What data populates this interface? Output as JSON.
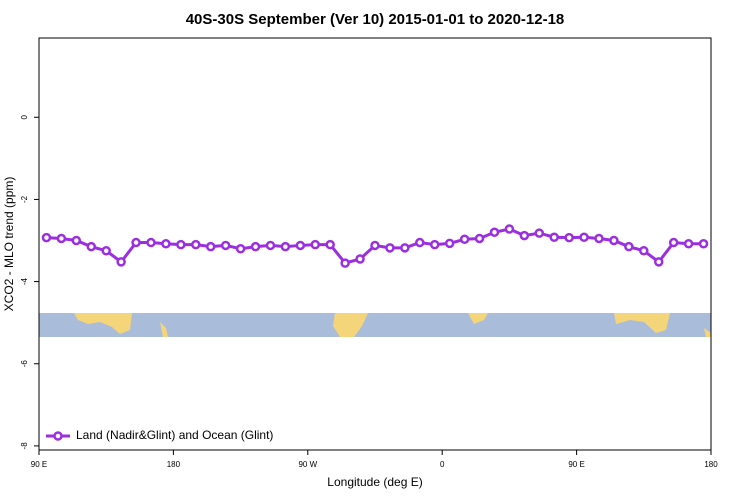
{
  "chart_data": {
    "type": "line",
    "title": "40S-30S September (Ver 10)   2015-01-01 to 2020-12-18",
    "xlabel": "Longitude (deg E)",
    "ylabel": "XCO2 - MLO trend (ppm)",
    "x": [
      95,
      105,
      115,
      125,
      135,
      145,
      155,
      165,
      175,
      185,
      195,
      205,
      215,
      225,
      235,
      245,
      255,
      265,
      275,
      285,
      295,
      305,
      315,
      325,
      335,
      345,
      355,
      365,
      375,
      385,
      395,
      405,
      415,
      425,
      435,
      445,
      455,
      465,
      475,
      485,
      495,
      505,
      515,
      525,
      535
    ],
    "series": [
      {
        "name": "Land (Nadir&Glint) and Ocean (Glint)",
        "color": "#9b2fe0",
        "values": [
          -2.93,
          -2.95,
          -3.0,
          -3.15,
          -3.25,
          -3.52,
          -3.05,
          -3.05,
          -3.08,
          -3.1,
          -3.1,
          -3.15,
          -3.12,
          -3.2,
          -3.15,
          -3.12,
          -3.15,
          -3.12,
          -3.1,
          -3.1,
          -3.55,
          -3.45,
          -3.12,
          -3.18,
          -3.18,
          -3.05,
          -3.1,
          -3.07,
          -2.97,
          -2.95,
          -2.8,
          -2.72,
          -2.88,
          -2.82,
          -2.92,
          -2.93,
          -2.92,
          -2.95,
          -3.0,
          -3.15,
          -3.25,
          -3.52,
          -3.05,
          -3.08,
          -3.08
        ]
      }
    ],
    "xlim": [
      90,
      540
    ],
    "xticks": [
      {
        "value": 90,
        "label": "90 E"
      },
      180,
      {
        "value": 270,
        "label": "90 W"
      },
      {
        "value": 360,
        "label": "0"
      },
      {
        "value": 450,
        "label": "90 E"
      },
      {
        "value": 540,
        "label": "180"
      }
    ],
    "ylim": [
      -8.1,
      1.93
    ],
    "yticks": [
      0,
      -2,
      -4,
      -6,
      -8
    ],
    "legend": "bottom-left"
  }
}
